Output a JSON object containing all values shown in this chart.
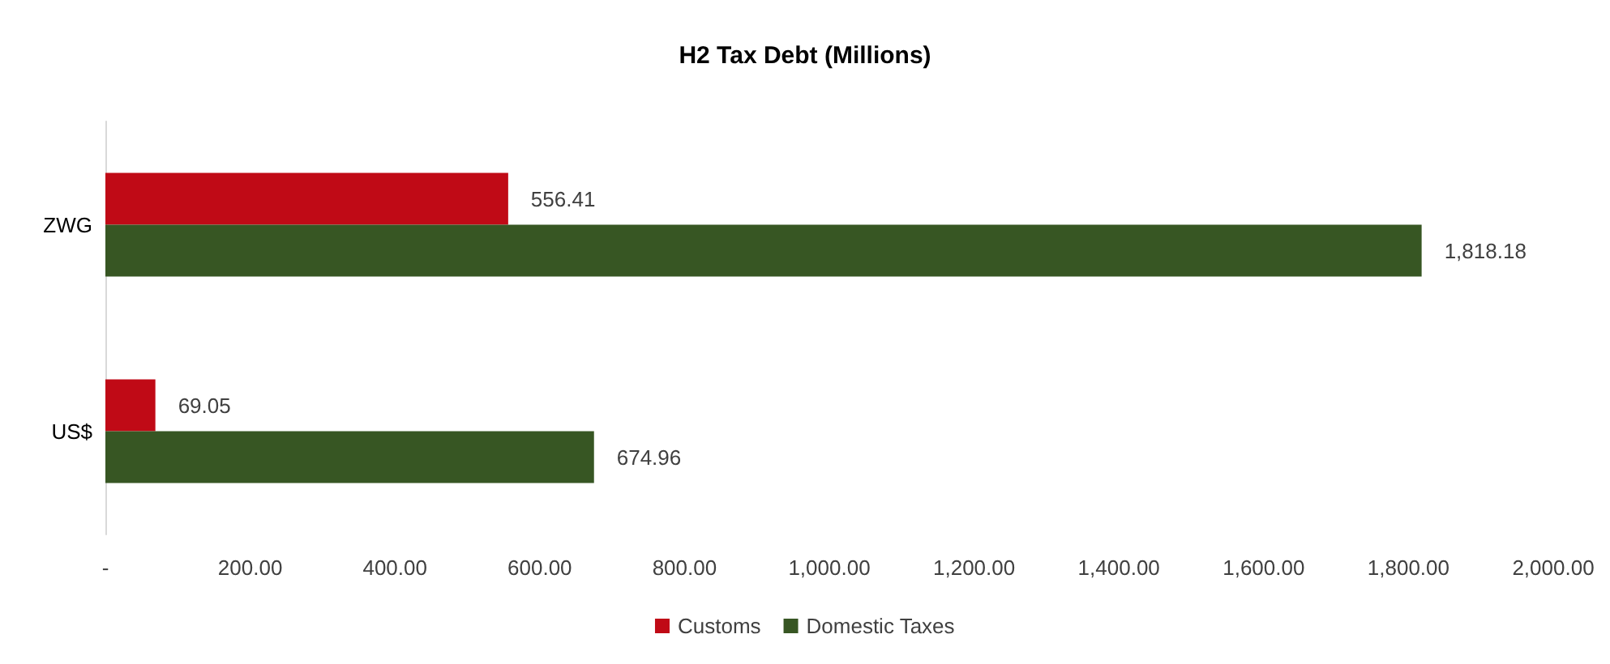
{
  "chart_data": {
    "type": "bar",
    "orientation": "horizontal",
    "title": "H2 Tax Debt (Millions)",
    "categories": [
      "ZWG",
      "US$"
    ],
    "series": [
      {
        "name": "Customs",
        "color": "#c00a16",
        "values": [
          556.41,
          69.05
        ],
        "value_labels": [
          "556.41",
          "69.05"
        ]
      },
      {
        "name": "Domestic Taxes",
        "color": "#375623",
        "values": [
          1818.18,
          674.96
        ],
        "value_labels": [
          "1,818.18",
          "674.96"
        ]
      }
    ],
    "xlim": [
      0,
      2000
    ],
    "xticks": [
      {
        "value": 0,
        "label": "-"
      },
      {
        "value": 200,
        "label": "200.00"
      },
      {
        "value": 400,
        "label": "400.00"
      },
      {
        "value": 600,
        "label": "600.00"
      },
      {
        "value": 800,
        "label": "800.00"
      },
      {
        "value": 1000,
        "label": "1,000.00"
      },
      {
        "value": 1200,
        "label": "1,200.00"
      },
      {
        "value": 1400,
        "label": "1,400.00"
      },
      {
        "value": 1600,
        "label": "1,600.00"
      },
      {
        "value": 1800,
        "label": "1,800.00"
      },
      {
        "value": 2000,
        "label": "2,000.00"
      }
    ],
    "grid": false,
    "legend": "bottom"
  }
}
